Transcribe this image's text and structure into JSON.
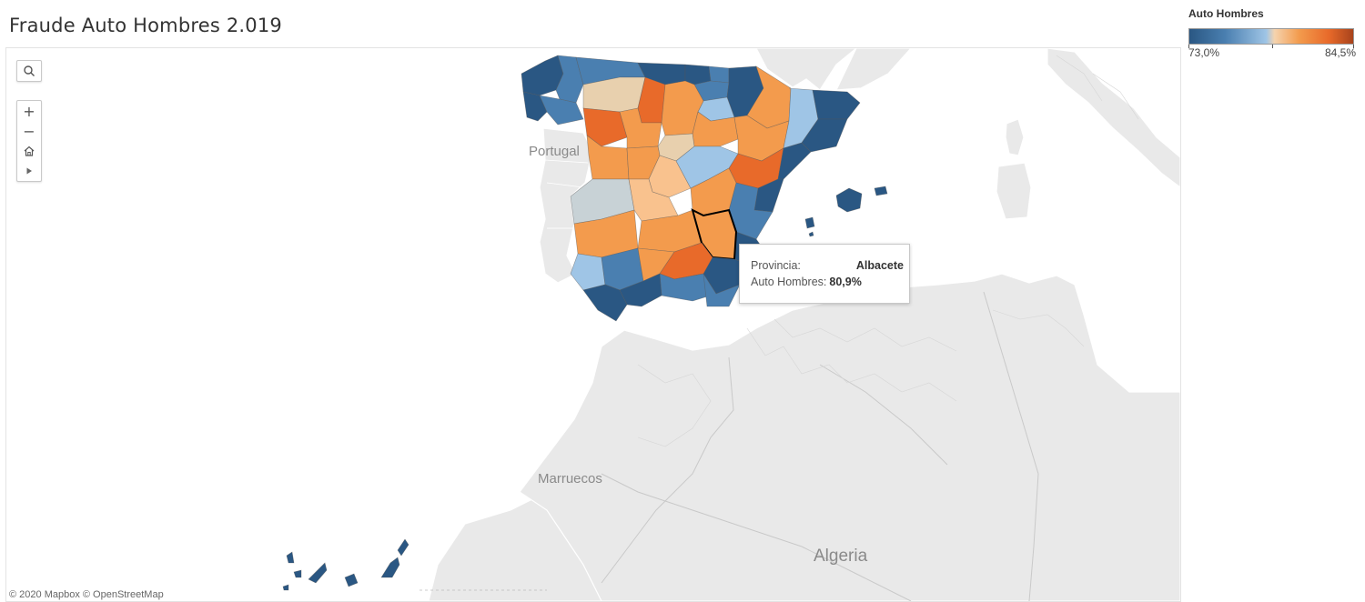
{
  "title": "Fraude Auto Hombres 2.019",
  "legend": {
    "title": "Auto Hombres",
    "min_label": "73,0%",
    "max_label": "84,5%",
    "colors": [
      "#2a5783",
      "#4a7fb0",
      "#9fc5e6",
      "#f5d3ae",
      "#f39b4d",
      "#e86a2a",
      "#a8431c"
    ]
  },
  "map_labels": {
    "portugal": "Portugal",
    "marruecos": "Marruecos",
    "algeria": "Algeria"
  },
  "controls": {
    "search_icon": "search-icon",
    "zoom_in": "+",
    "zoom_out": "−",
    "home_icon": "home-icon",
    "play_icon": "play-icon"
  },
  "tooltip": {
    "field1_label": "Provincia:",
    "field1_value": "Albacete",
    "field2_label": "Auto Hombres:",
    "field2_value": "80,9%"
  },
  "selected_province": "Albacete",
  "attribution": "© 2020 Mapbox  © OpenStreetMap"
}
